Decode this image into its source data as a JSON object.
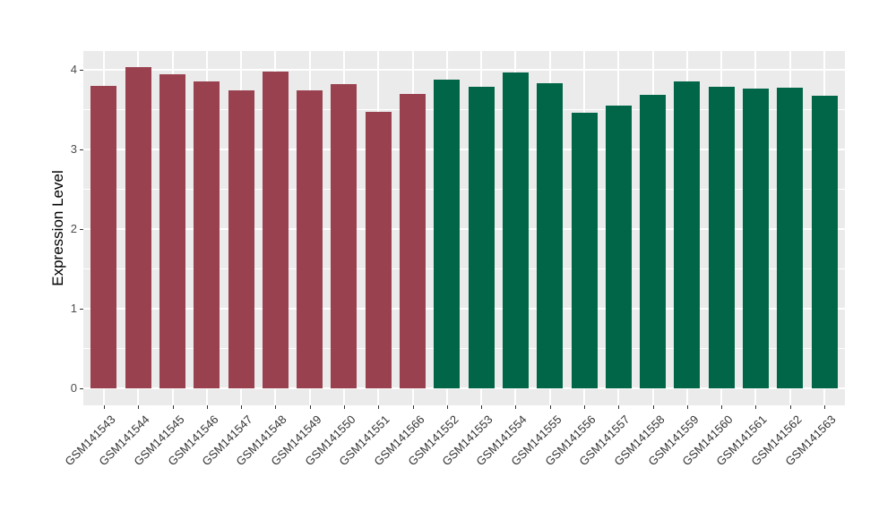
{
  "y_axis": {
    "title": "Expression Level",
    "tick_labels": [
      "0",
      "1",
      "2",
      "3",
      "4"
    ]
  },
  "chart_data": {
    "type": "bar",
    "title": "",
    "xlabel": "",
    "ylabel": "Expression Level",
    "ylim": [
      0,
      4.23
    ],
    "y_major_ticks": [
      0,
      1,
      2,
      3,
      4
    ],
    "y_minor_ticks": [
      0.5,
      1.5,
      2.5,
      3.5
    ],
    "grid": "on",
    "legend_position": "none",
    "panel_background": "#EBEBEB",
    "gridline_color": "#FFFFFF",
    "group_colors": {
      "group1": "#9A4150",
      "group2": "#006647"
    },
    "categories": [
      "GSM141543",
      "GSM141544",
      "GSM141545",
      "GSM141546",
      "GSM141547",
      "GSM141548",
      "GSM141549",
      "GSM141550",
      "GSM141551",
      "GSM141566",
      "GSM141552",
      "GSM141553",
      "GSM141554",
      "GSM141555",
      "GSM141556",
      "GSM141557",
      "GSM141558",
      "GSM141559",
      "GSM141560",
      "GSM141561",
      "GSM141562",
      "GSM141563"
    ],
    "values": [
      3.8,
      4.03,
      3.94,
      3.85,
      3.74,
      3.97,
      3.74,
      3.82,
      3.47,
      3.7,
      3.87,
      3.79,
      3.96,
      3.83,
      3.46,
      3.55,
      3.68,
      3.85,
      3.79,
      3.76,
      3.77,
      3.67
    ],
    "groups": [
      "group1",
      "group1",
      "group1",
      "group1",
      "group1",
      "group1",
      "group1",
      "group1",
      "group1",
      "group1",
      "group2",
      "group2",
      "group2",
      "group2",
      "group2",
      "group2",
      "group2",
      "group2",
      "group2",
      "group2",
      "group2",
      "group2"
    ]
  }
}
